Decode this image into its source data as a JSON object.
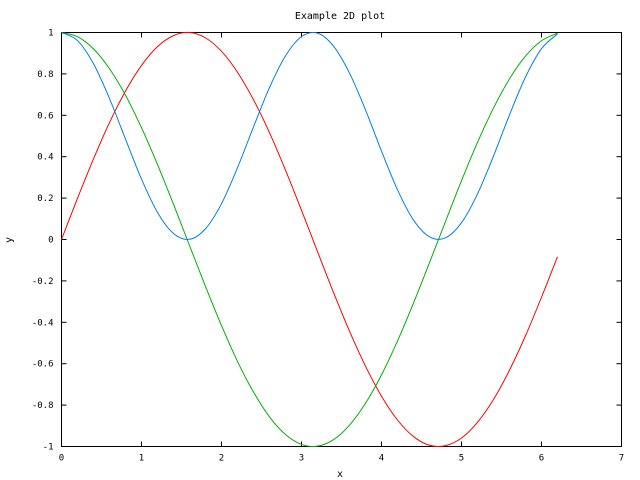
{
  "chart_data": {
    "type": "line",
    "title": "Example 2D plot",
    "xlabel": "x",
    "ylabel": "y",
    "xlim": [
      0,
      7
    ],
    "ylim": [
      -1,
      1
    ],
    "x_ticks": [
      "0",
      "1",
      "2",
      "3",
      "4",
      "5",
      "6",
      "7"
    ],
    "y_ticks": [
      "-1",
      "-0.8",
      "-0.6",
      "-0.4",
      "-0.2",
      "0",
      "0.2",
      "0.4",
      "0.6",
      "0.8",
      "1"
    ],
    "x_tick_values": [
      0,
      1,
      2,
      3,
      4,
      5,
      6,
      7
    ],
    "y_tick_values": [
      -1,
      -0.8,
      -0.6,
      -0.4,
      -0.2,
      0,
      0.2,
      0.4,
      0.6,
      0.8,
      1
    ],
    "grid": false,
    "legend": "none",
    "x": [
      0,
      0.2,
      0.4,
      0.6,
      0.8,
      1.0,
      1.2,
      1.4,
      1.6,
      1.8,
      2.0,
      2.2,
      2.4,
      2.6,
      2.8,
      3.0,
      3.2,
      3.4,
      3.6,
      3.8,
      4.0,
      4.2,
      4.4,
      4.6,
      4.8,
      5.0,
      5.2,
      5.4,
      5.6,
      5.8,
      6.0,
      6.2
    ],
    "series": [
      {
        "color": "#ff0000",
        "values": [
          0,
          0.199,
          0.389,
          0.565,
          0.717,
          0.841,
          0.932,
          0.985,
          1.0,
          0.974,
          0.909,
          0.808,
          0.675,
          0.516,
          0.335,
          0.141,
          -0.058,
          -0.256,
          -0.443,
          -0.612,
          -0.757,
          -0.872,
          -0.952,
          -0.994,
          -0.996,
          -0.959,
          -0.883,
          -0.773,
          -0.631,
          -0.465,
          -0.279,
          -0.083
        ]
      },
      {
        "color": "#00b000",
        "values": [
          1.0,
          0.98,
          0.921,
          0.825,
          0.697,
          0.54,
          0.362,
          0.17,
          -0.029,
          -0.227,
          -0.416,
          -0.589,
          -0.737,
          -0.857,
          -0.942,
          -0.99,
          -0.998,
          -0.967,
          -0.897,
          -0.791,
          -0.654,
          -0.49,
          -0.307,
          -0.112,
          0.087,
          0.284,
          0.469,
          0.635,
          0.776,
          0.886,
          0.96,
          0.997
        ]
      },
      {
        "color": "#0080e0",
        "values": [
          1.0,
          0.961,
          0.849,
          0.681,
          0.485,
          0.292,
          0.131,
          0.029,
          0.001,
          0.052,
          0.173,
          0.347,
          0.544,
          0.734,
          0.887,
          0.98,
          0.997,
          0.934,
          0.804,
          0.626,
          0.427,
          0.24,
          0.094,
          0.013,
          0.008,
          0.081,
          0.22,
          0.403,
          0.602,
          0.785,
          0.922,
          0.993
        ]
      }
    ]
  }
}
